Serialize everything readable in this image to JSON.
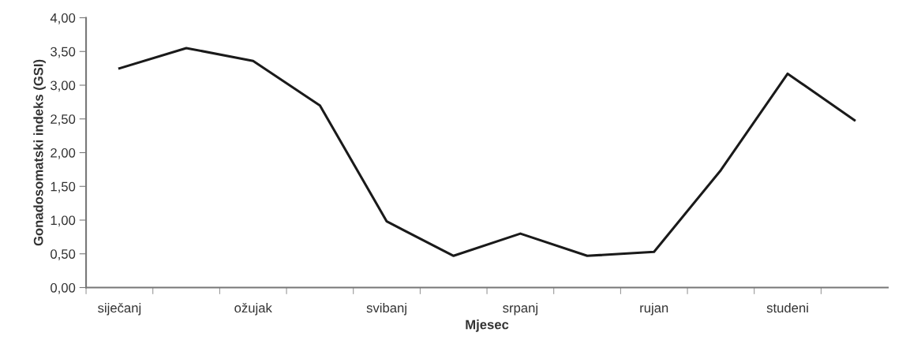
{
  "chart_data": {
    "type": "line",
    "xlabel": "Mjesec",
    "ylabel": "Gonadosomatski indeks (GSI)",
    "categories": [
      "siječanj",
      null,
      "ožujak",
      null,
      "svibanj",
      null,
      "srpanj",
      null,
      "rujan",
      null,
      "studeni",
      null
    ],
    "series": [
      {
        "color": "#1a1a1a",
        "values": [
          3.25,
          3.55,
          3.36,
          2.7,
          0.98,
          0.47,
          0.8,
          0.47,
          0.53,
          1.74,
          3.17,
          2.48
        ]
      }
    ],
    "ylim": [
      0,
      4
    ],
    "yticks": [
      {
        "value": 0,
        "label": "0,00"
      },
      {
        "value": 0.5,
        "label": "0,50"
      },
      {
        "value": 1,
        "label": "1,00"
      },
      {
        "value": 1.5,
        "label": "1,50"
      },
      {
        "value": 2,
        "label": "2,00"
      },
      {
        "value": 2.5,
        "label": "2,50"
      },
      {
        "value": 3,
        "label": "3,00"
      },
      {
        "value": 3.5,
        "label": "3,50"
      },
      {
        "value": 4,
        "label": "4,00"
      }
    ],
    "marker": "none",
    "line_style": "solid"
  }
}
